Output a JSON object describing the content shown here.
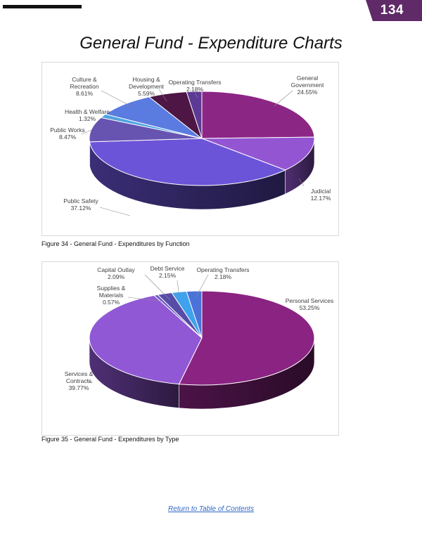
{
  "header": {
    "page_number": "134"
  },
  "page_title": "General Fund - Expenditure Charts",
  "figures": [
    {
      "caption": "Figure 34 - General Fund - Expenditures by Function"
    },
    {
      "caption": "Figure 35 - General Fund - Expenditures by Type"
    }
  ],
  "footer": {
    "link_text": "Return to Table of Contents"
  },
  "chart_data": [
    {
      "type": "pie",
      "style": "3d",
      "legend": "none",
      "categories": [
        "General Government",
        "Judicial",
        "Public Safety",
        "Public Works",
        "Health & Welfare",
        "Culture & Recreation",
        "Housing & Development",
        "Operating Transfers"
      ],
      "values": [
        24.55,
        12.17,
        37.12,
        8.47,
        1.32,
        8.61,
        5.59,
        2.18
      ],
      "value_labels": [
        "24.55%",
        "12.17%",
        "37.12%",
        "8.47%",
        "1.32%",
        "8.61%",
        "5.59%",
        "2.18%"
      ],
      "colors": [
        "#8c2685",
        "#9455d3",
        "#6b54d8",
        "#6754b1",
        "#4da3e2",
        "#5a7bdf",
        "#4d1644",
        "#5d3996"
      ]
    },
    {
      "type": "pie",
      "style": "3d",
      "legend": "none",
      "categories": [
        "Personal Services",
        "Services & Contracts",
        "Supplies & Materials",
        "Capital Outlay",
        "Debt Service",
        "Operating Transfers"
      ],
      "values": [
        53.25,
        39.77,
        0.57,
        2.09,
        2.15,
        2.18
      ],
      "value_labels": [
        "53.25%",
        "39.77%",
        "0.57%",
        "2.09%",
        "2.15%",
        "2.18%"
      ],
      "colors": [
        "#8a2382",
        "#9158d6",
        "#6a5bc4",
        "#574ca8",
        "#3fa2ec",
        "#4a72d8"
      ]
    }
  ]
}
